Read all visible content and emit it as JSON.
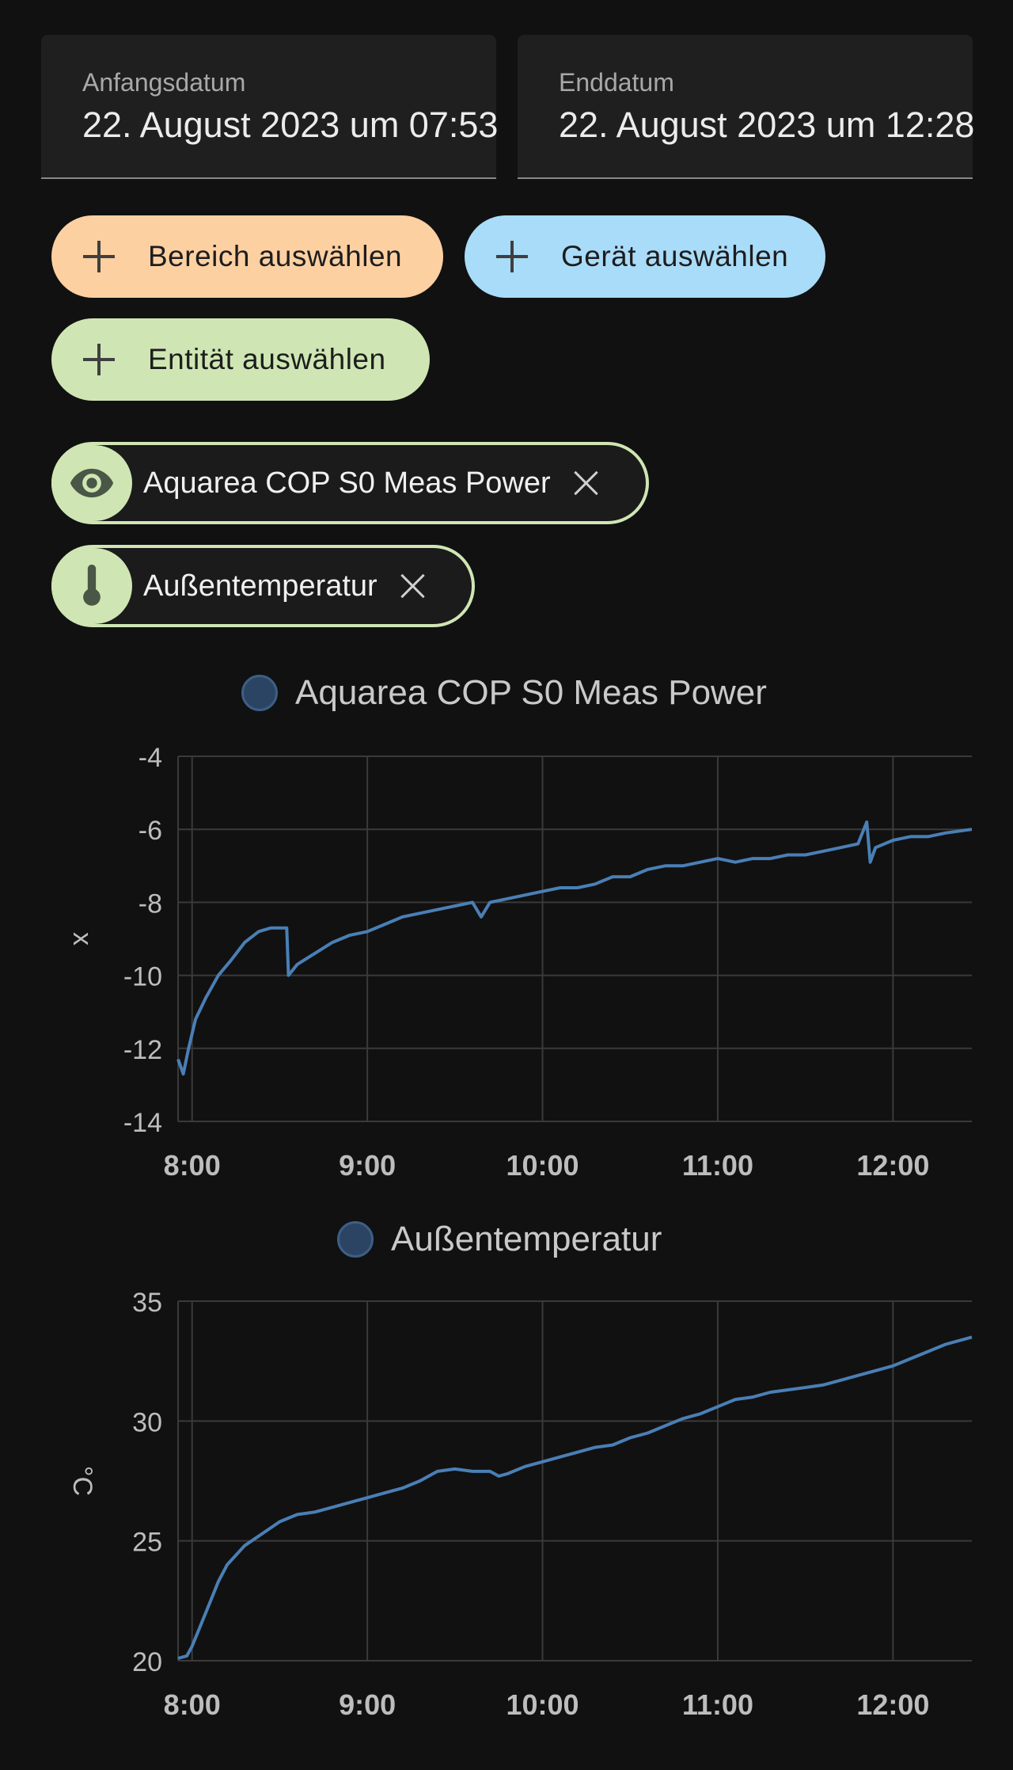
{
  "date_range": {
    "start": {
      "label": "Anfangsdatum",
      "value": "22. August 2023 um 07:53"
    },
    "end": {
      "label": "Enddatum",
      "value": "22. August 2023 um 12:28"
    }
  },
  "target_picker": {
    "area_button": {
      "label": "Bereich auswählen",
      "color": "#fdd0a2"
    },
    "device_button": {
      "label": "Gerät auswählen",
      "color": "#a9dcf8"
    },
    "entity_button": {
      "label": "Entität auswählen",
      "color": "#cfe6b4"
    }
  },
  "selected_entities": [
    {
      "label": "Aquarea COP S0 Meas Power",
      "icon": "eye-icon"
    },
    {
      "label": "Außentemperatur",
      "icon": "thermometer-icon"
    }
  ],
  "colors": {
    "background": "#111111",
    "line": "#4a7fb5",
    "legend_dot": "#2c4463",
    "grid": "#3a3a3a"
  },
  "chart_data": [
    {
      "type": "line",
      "legend": "Aquarea COP S0 Meas Power",
      "ylabel": "x",
      "ylim": [
        -14,
        -4
      ],
      "yticks": [
        "-4",
        "-6",
        "-8",
        "-10",
        "-12",
        "-14"
      ],
      "xticks": [
        "8:00",
        "9:00",
        "10:00",
        "11:00",
        "12:00"
      ],
      "xlim": [
        7.92,
        12.45
      ],
      "grid": true,
      "series": [
        {
          "x": [
            7.92,
            7.95,
            7.98,
            8.02,
            8.08,
            8.15,
            8.22,
            8.3,
            8.38,
            8.45,
            8.54,
            8.55,
            8.6,
            8.7,
            8.8,
            8.9,
            9.0,
            9.1,
            9.2,
            9.3,
            9.4,
            9.5,
            9.6,
            9.65,
            9.7,
            9.8,
            9.9,
            10.0,
            10.1,
            10.2,
            10.3,
            10.4,
            10.5,
            10.6,
            10.7,
            10.8,
            10.9,
            11.0,
            11.1,
            11.2,
            11.3,
            11.4,
            11.5,
            11.6,
            11.7,
            11.8,
            11.85,
            11.87,
            11.9,
            12.0,
            12.1,
            12.2,
            12.3,
            12.45
          ],
          "y": [
            -12.3,
            -12.7,
            -12.0,
            -11.2,
            -10.6,
            -10.0,
            -9.6,
            -9.1,
            -8.8,
            -8.7,
            -8.7,
            -10.0,
            -9.7,
            -9.4,
            -9.1,
            -8.9,
            -8.8,
            -8.6,
            -8.4,
            -8.3,
            -8.2,
            -8.1,
            -8.0,
            -8.4,
            -8.0,
            -7.9,
            -7.8,
            -7.7,
            -7.6,
            -7.6,
            -7.5,
            -7.3,
            -7.3,
            -7.1,
            -7.0,
            -7.0,
            -6.9,
            -6.8,
            -6.9,
            -6.8,
            -6.8,
            -6.7,
            -6.7,
            -6.6,
            -6.5,
            -6.4,
            -5.8,
            -6.9,
            -6.5,
            -6.3,
            -6.2,
            -6.2,
            -6.1,
            -6.0
          ]
        }
      ]
    },
    {
      "type": "line",
      "legend": "Außentemperatur",
      "ylabel": "°C",
      "ylim": [
        20,
        35
      ],
      "yticks": [
        "35",
        "30",
        "25",
        "20"
      ],
      "xticks": [
        "8:00",
        "9:00",
        "10:00",
        "11:00",
        "12:00"
      ],
      "xlim": [
        7.92,
        12.45
      ],
      "grid": true,
      "series": [
        {
          "x": [
            7.92,
            7.97,
            8.0,
            8.05,
            8.1,
            8.15,
            8.2,
            8.3,
            8.4,
            8.5,
            8.6,
            8.7,
            8.8,
            8.9,
            9.0,
            9.1,
            9.2,
            9.3,
            9.4,
            9.5,
            9.6,
            9.7,
            9.75,
            9.8,
            9.9,
            10.0,
            10.1,
            10.2,
            10.3,
            10.4,
            10.5,
            10.6,
            10.7,
            10.8,
            10.9,
            11.0,
            11.1,
            11.2,
            11.3,
            11.4,
            11.5,
            11.6,
            11.7,
            11.8,
            11.9,
            12.0,
            12.1,
            12.2,
            12.3,
            12.45
          ],
          "y": [
            20.1,
            20.2,
            20.6,
            21.5,
            22.4,
            23.3,
            24.0,
            24.8,
            25.3,
            25.8,
            26.1,
            26.2,
            26.4,
            26.6,
            26.8,
            27.0,
            27.2,
            27.5,
            27.9,
            28.0,
            27.9,
            27.9,
            27.7,
            27.8,
            28.1,
            28.3,
            28.5,
            28.7,
            28.9,
            29.0,
            29.3,
            29.5,
            29.8,
            30.1,
            30.3,
            30.6,
            30.9,
            31.0,
            31.2,
            31.3,
            31.4,
            31.5,
            31.7,
            31.9,
            32.1,
            32.3,
            32.6,
            32.9,
            33.2,
            33.5
          ]
        }
      ]
    }
  ]
}
